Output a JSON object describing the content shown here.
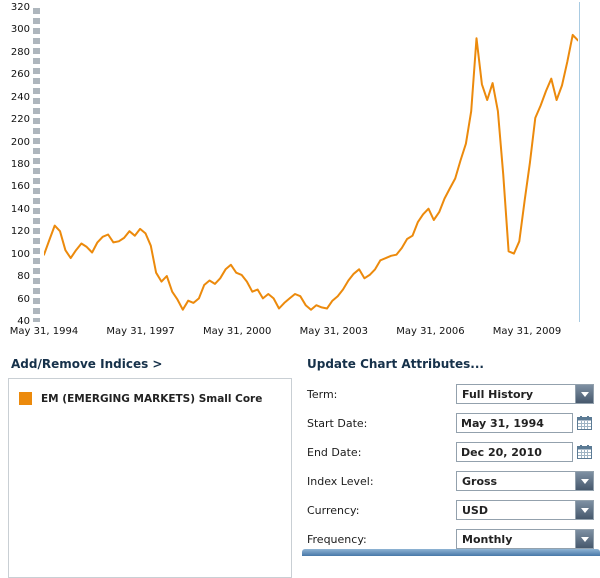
{
  "colors": {
    "line": "#EC8A0C",
    "heading": "#16314A",
    "slider_dash": "#AEB6BD",
    "plot_right_border": "#A9CBE2",
    "bottom_bar": "#4878A8"
  },
  "icons": {
    "dropdown": "chevron-down-icon",
    "calendar": "calendar-icon"
  },
  "chart_data": {
    "type": "line",
    "title": "",
    "xlabel": "",
    "ylabel": "",
    "ylim": [
      40,
      320
    ],
    "y_tick_step": 20,
    "y_ticks": [
      320,
      300,
      280,
      260,
      240,
      220,
      200,
      180,
      160,
      140,
      120,
      100,
      80,
      60,
      40
    ],
    "x_ticks": [
      {
        "label": "May 31, 1994",
        "m": 0
      },
      {
        "label": "May 31, 1997",
        "m": 36
      },
      {
        "label": "May 31, 2000",
        "m": 72
      },
      {
        "label": "May 31, 2003",
        "m": 108
      },
      {
        "label": "May 31, 2006",
        "m": 144
      },
      {
        "label": "May 31, 2009",
        "m": 180
      }
    ],
    "x_total_months": 199,
    "grid": false,
    "legend_position": "panel-below-left",
    "series": [
      {
        "name": "EM (EMERGING MARKETS) Small Core",
        "color": "#EC8A0C",
        "x_unit": "evenly spaced samples, May 31 1994 to Dec 20 2010",
        "values": [
          100,
          113,
          126,
          121,
          104,
          97,
          104,
          110,
          107,
          102,
          111,
          116,
          118,
          111,
          112,
          115,
          121,
          117,
          123,
          119,
          108,
          84,
          76,
          81,
          67,
          60,
          51,
          59,
          57,
          61,
          73,
          77,
          74,
          79,
          87,
          91,
          84,
          82,
          76,
          67,
          69,
          61,
          65,
          61,
          52,
          57,
          61,
          65,
          63,
          55,
          51,
          55,
          53,
          52,
          59,
          63,
          69,
          77,
          83,
          87,
          79,
          82,
          87,
          95,
          97,
          99,
          100,
          106,
          114,
          117,
          129,
          136,
          141,
          131,
          138,
          150,
          159,
          168,
          184,
          199,
          228,
          293,
          252,
          238,
          253,
          228,
          172,
          103,
          101,
          112,
          148,
          182,
          222,
          233,
          246,
          257,
          238,
          251,
          272,
          296,
          291
        ]
      }
    ]
  },
  "indices_panel": {
    "link_label": "Add/Remove Indices >",
    "legend": [
      {
        "label": "EM (EMERGING MARKETS) Small Core",
        "color": "#EC8A0C"
      }
    ]
  },
  "attributes_panel": {
    "heading": "Update Chart Attributes...",
    "term": {
      "label": "Term:",
      "value": "Full History"
    },
    "start_date": {
      "label": "Start Date:",
      "value": "May 31, 1994"
    },
    "end_date": {
      "label": "End Date:",
      "value": "Dec 20, 2010"
    },
    "index_level": {
      "label": "Index Level:",
      "value": "Gross"
    },
    "currency": {
      "label": "Currency:",
      "value": "USD"
    },
    "frequency": {
      "label": "Frequency:",
      "value": "Monthly"
    }
  }
}
